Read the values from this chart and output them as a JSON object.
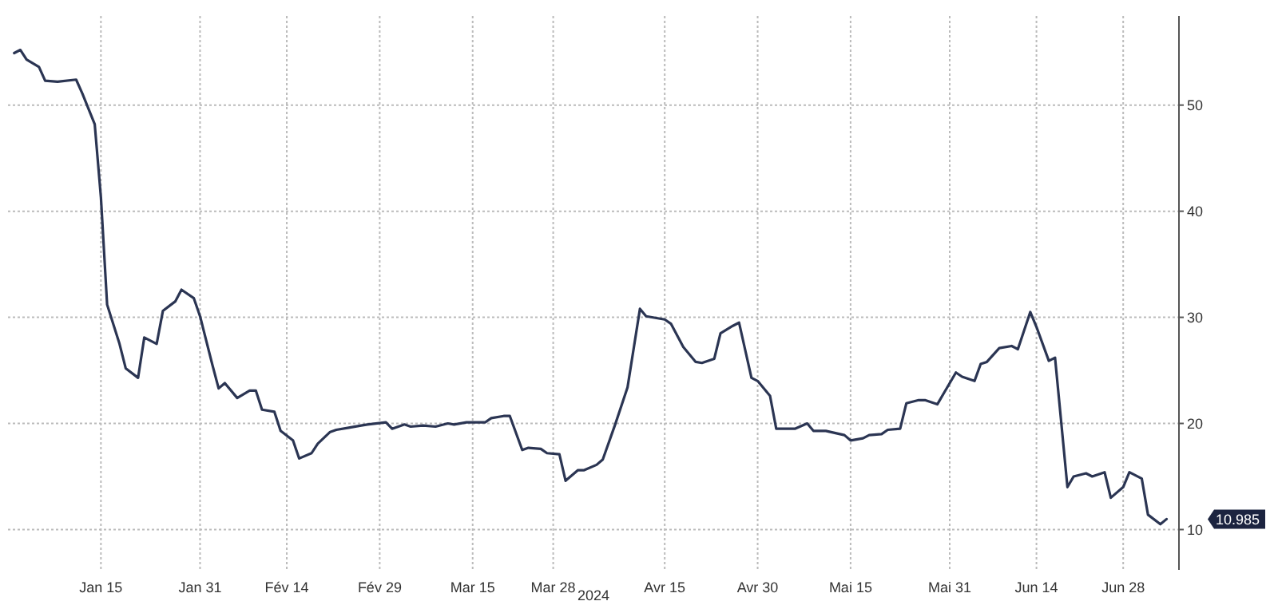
{
  "chart_data": {
    "type": "line",
    "xlabel": "2024",
    "x": [
      "2024-01-01",
      "2024-01-02",
      "2024-01-03",
      "2024-01-05",
      "2024-01-06",
      "2024-01-08",
      "2024-01-11",
      "2024-01-12",
      "2024-01-14",
      "2024-01-15",
      "2024-01-16",
      "2024-01-18",
      "2024-01-19",
      "2024-01-21",
      "2024-01-22",
      "2024-01-24",
      "2024-01-25",
      "2024-01-27",
      "2024-01-28",
      "2024-01-30",
      "2024-01-31",
      "2024-02-02",
      "2024-02-03",
      "2024-02-04",
      "2024-02-06",
      "2024-02-08",
      "2024-02-09",
      "2024-02-10",
      "2024-02-12",
      "2024-02-13",
      "2024-02-15",
      "2024-02-16",
      "2024-02-18",
      "2024-02-19",
      "2024-02-21",
      "2024-02-22",
      "2024-02-24",
      "2024-02-26",
      "2024-02-27",
      "2024-03-01",
      "2024-03-02",
      "2024-03-04",
      "2024-03-05",
      "2024-03-07",
      "2024-03-09",
      "2024-03-11",
      "2024-03-12",
      "2024-03-14",
      "2024-03-17",
      "2024-03-18",
      "2024-03-20",
      "2024-03-21",
      "2024-03-23",
      "2024-03-24",
      "2024-03-26",
      "2024-03-27",
      "2024-03-29",
      "2024-03-30",
      "2024-04-01",
      "2024-04-02",
      "2024-04-04",
      "2024-04-05",
      "2024-04-07",
      "2024-04-09",
      "2024-04-11",
      "2024-04-12",
      "2024-04-15",
      "2024-04-16",
      "2024-04-18",
      "2024-04-20",
      "2024-04-21",
      "2024-04-23",
      "2024-04-24",
      "2024-04-26",
      "2024-04-27",
      "2024-04-29",
      "2024-04-30",
      "2024-05-02",
      "2024-05-03",
      "2024-05-06",
      "2024-05-08",
      "2024-05-09",
      "2024-05-11",
      "2024-05-14",
      "2024-05-15",
      "2024-05-17",
      "2024-05-18",
      "2024-05-20",
      "2024-05-21",
      "2024-05-23",
      "2024-05-24",
      "2024-05-26",
      "2024-05-27",
      "2024-05-29",
      "2024-05-30",
      "2024-06-01",
      "2024-06-02",
      "2024-06-04",
      "2024-06-05",
      "2024-06-06",
      "2024-06-08",
      "2024-06-10",
      "2024-06-11",
      "2024-06-13",
      "2024-06-14",
      "2024-06-16",
      "2024-06-17",
      "2024-06-19",
      "2024-06-20",
      "2024-06-22",
      "2024-06-23",
      "2024-06-25",
      "2024-06-26",
      "2024-06-28",
      "2024-06-29",
      "2024-07-01",
      "2024-07-02",
      "2024-07-04",
      "2024-07-05"
    ],
    "series": [
      {
        "color": "#2b3553",
        "values": [
          54.9,
          55.2,
          54.3,
          53.6,
          52.3,
          52.2,
          52.4,
          51.1,
          48.2,
          41.3,
          31.2,
          27.5,
          25.2,
          24.3,
          28.1,
          27.5,
          30.6,
          31.5,
          32.6,
          31.8,
          30.1,
          25.5,
          23.3,
          23.8,
          22.4,
          23.1,
          23.1,
          21.3,
          21.1,
          19.3,
          18.4,
          16.7,
          17.2,
          18.1,
          19.2,
          19.4,
          19.6,
          19.8,
          19.9,
          20.1,
          19.5,
          19.9,
          19.7,
          19.8,
          19.7,
          20.0,
          19.9,
          20.1,
          20.1,
          20.5,
          20.7,
          20.7,
          17.5,
          17.7,
          17.6,
          17.2,
          17.1,
          14.6,
          15.6,
          15.6,
          16.1,
          16.6,
          19.9,
          23.4,
          30.8,
          30.1,
          29.8,
          29.4,
          27.2,
          25.8,
          25.7,
          26.1,
          28.5,
          29.2,
          29.5,
          24.3,
          24.0,
          22.6,
          19.5,
          19.5,
          20.0,
          19.3,
          19.3,
          18.9,
          18.4,
          18.6,
          18.9,
          19.0,
          19.4,
          19.5,
          21.9,
          22.2,
          22.2,
          21.8,
          22.8,
          24.8,
          24.4,
          24.0,
          25.6,
          25.8,
          27.1,
          27.3,
          27.0,
          30.5,
          29.1,
          25.9,
          26.2,
          14.0,
          15.0,
          15.3,
          15.0,
          15.4,
          13.0,
          14.0,
          15.4,
          14.8,
          11.4,
          10.5,
          10.985
        ]
      }
    ],
    "xlim": [
      "2023-12-31",
      "2024-07-07"
    ],
    "xticks": [
      {
        "value": "2024-01-15",
        "label": "Jan 15"
      },
      {
        "value": "2024-01-31",
        "label": "Jan 31"
      },
      {
        "value": "2024-02-14",
        "label": "Fév 14"
      },
      {
        "value": "2024-02-29",
        "label": "Fév 29"
      },
      {
        "value": "2024-03-15",
        "label": "Mar 15"
      },
      {
        "value": "2024-03-28",
        "label": "Mar 28"
      },
      {
        "value": "2024-04-15",
        "label": "Avr 15"
      },
      {
        "value": "2024-04-30",
        "label": "Avr 30"
      },
      {
        "value": "2024-05-15",
        "label": "Mai 15"
      },
      {
        "value": "2024-05-31",
        "label": "Mai 31"
      },
      {
        "value": "2024-06-14",
        "label": "Jun 14"
      },
      {
        "value": "2024-06-28",
        "label": "Jun 28"
      }
    ],
    "ylim": [
      6.2,
      58.4
    ],
    "yticks": [
      10,
      20,
      30,
      40,
      50
    ],
    "grid": true,
    "annotations": [
      "10.985"
    ]
  }
}
